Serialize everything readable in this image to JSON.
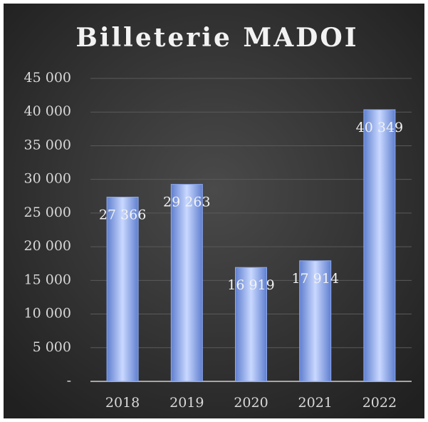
{
  "chart_data": {
    "type": "bar",
    "title": "Billeterie MADOI",
    "categories": [
      "2018",
      "2019",
      "2020",
      "2021",
      "2022"
    ],
    "values": [
      27366,
      29263,
      16919,
      17914,
      40349
    ],
    "value_labels": [
      "27 366",
      "29 263",
      "16 919",
      "17 914",
      "40 349"
    ],
    "color": "#8eaaf0",
    "ylim": [
      0,
      45000
    ],
    "yticks": [
      {
        "value": 0,
        "label": "-"
      },
      {
        "value": 5000,
        "label": "5 000"
      },
      {
        "value": 10000,
        "label": "10 000"
      },
      {
        "value": 15000,
        "label": "15 000"
      },
      {
        "value": 20000,
        "label": "20 000"
      },
      {
        "value": 25000,
        "label": "25 000"
      },
      {
        "value": 30000,
        "label": "30 000"
      },
      {
        "value": 35000,
        "label": "35 000"
      },
      {
        "value": 40000,
        "label": "40 000"
      },
      {
        "value": 45000,
        "label": "45 000"
      }
    ],
    "grid": true
  }
}
